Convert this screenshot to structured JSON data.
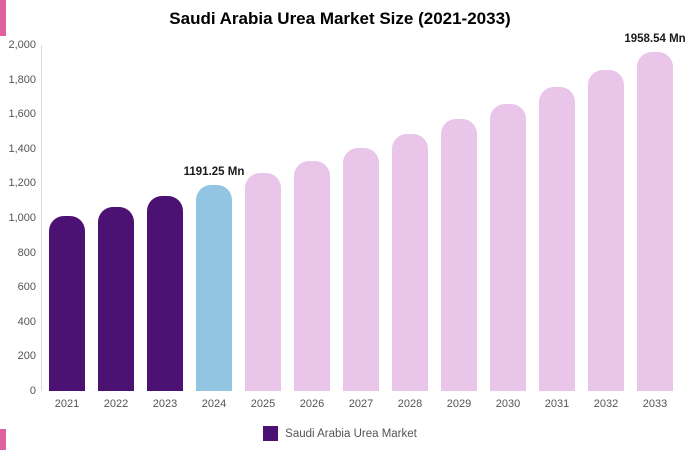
{
  "title": "Saudi Arabia Urea Market Size (2021-2033)",
  "legend": {
    "label": "Saudi Arabia Urea Market",
    "color": "#4b1273"
  },
  "colors": {
    "historical_bar": "#4b1273",
    "current_bar": "#92c5e1",
    "forecast_bar": "#e9c5ea",
    "edge_strip": "#df629f",
    "axis_text": "#555555",
    "annotation_text": "#1a1a1a"
  },
  "annotations": [
    {
      "year": "2024",
      "text": "1191.25 Mn"
    },
    {
      "year": "2033",
      "text": "1958.54 Mn"
    }
  ],
  "chart_data": {
    "type": "bar",
    "title": "Saudi Arabia Urea Market Size (2021-2033)",
    "categories": [
      "2021",
      "2022",
      "2023",
      "2024",
      "2025",
      "2026",
      "2027",
      "2028",
      "2029",
      "2030",
      "2031",
      "2032",
      "2033"
    ],
    "values": [
      1009,
      1066,
      1127,
      1191.25,
      1259,
      1331,
      1407,
      1487,
      1571,
      1660,
      1755,
      1854,
      1958.54
    ],
    "bar_colors": [
      "#4b1273",
      "#4b1273",
      "#4b1273",
      "#92c5e1",
      "#e9c5ea",
      "#e9c5ea",
      "#e9c5ea",
      "#e9c5ea",
      "#e9c5ea",
      "#e9c5ea",
      "#e9c5ea",
      "#e9c5ea",
      "#e9c5ea"
    ],
    "xlabel": "",
    "ylabel": "",
    "ylim": [
      0,
      2000
    ],
    "yticks": [
      0,
      200,
      400,
      600,
      800,
      1000,
      1200,
      1400,
      1600,
      1800,
      2000
    ],
    "grid": false,
    "legend": [
      "Saudi Arabia Urea Market"
    ],
    "legend_position": "bottom"
  }
}
